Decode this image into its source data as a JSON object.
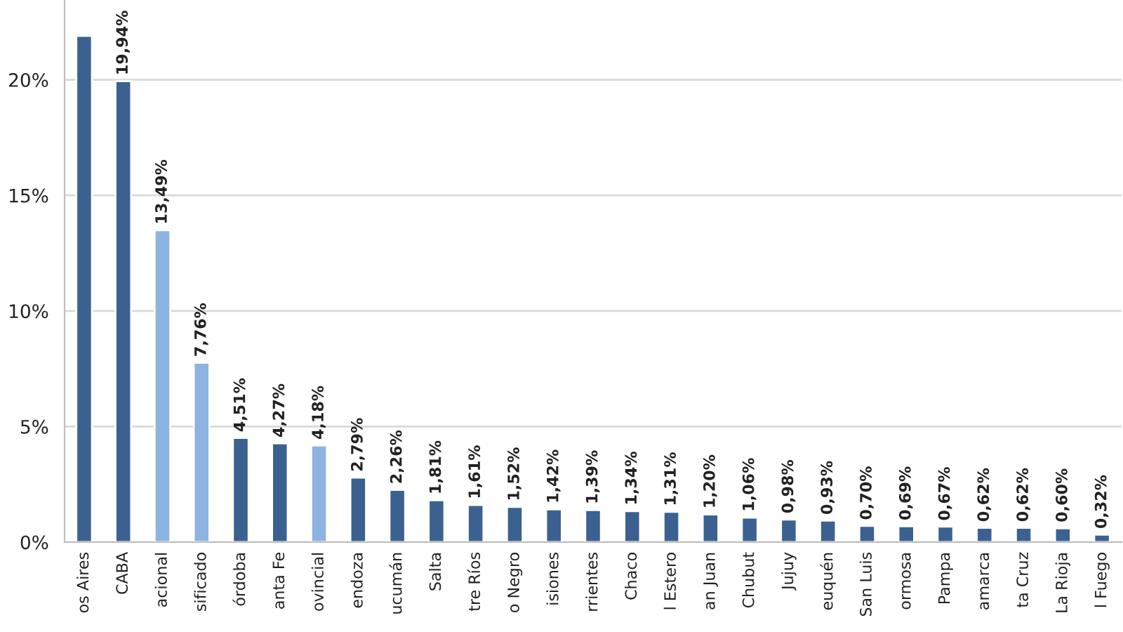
{
  "chart_data": {
    "type": "bar",
    "categories": [
      "os Aires",
      "CABA",
      "acional",
      "sificado",
      "órdoba",
      "anta Fe",
      "ovincial",
      "endoza",
      "ucumán",
      "Salta",
      "tre Ríos",
      "o Negro",
      "isiones",
      "rrientes",
      "Chaco",
      "l Estero",
      "an Juan",
      "Chubut",
      "Jujuy",
      "euquén",
      "San Luis",
      "ormosa",
      "Pampa",
      "amarca",
      "ta Cruz",
      "La Rioja",
      "l Fuego"
    ],
    "values": [
      21.9,
      19.94,
      13.49,
      7.76,
      4.51,
      4.27,
      4.18,
      2.79,
      2.26,
      1.81,
      1.61,
      1.52,
      1.42,
      1.39,
      1.34,
      1.31,
      1.2,
      1.06,
      0.98,
      0.93,
      0.7,
      0.69,
      0.67,
      0.62,
      0.62,
      0.6,
      0.32
    ],
    "value_labels": [
      null,
      "19,94%",
      "13,49%",
      "7,76%",
      "4,51%",
      "4,27%",
      "4,18%",
      "2,79%",
      "2,26%",
      "1,81%",
      "1,61%",
      "1,52%",
      "1,42%",
      "1,39%",
      "1,34%",
      "1,31%",
      "1,20%",
      "1,06%",
      "0,98%",
      "0,93%",
      "0,70%",
      "0,69%",
      "0,67%",
      "0,62%",
      "0,62%",
      "0,60%",
      "0,32%"
    ],
    "colors": [
      "#3b6190",
      "#3b6190",
      "#8db3e2",
      "#8db3e2",
      "#3b6190",
      "#3b6190",
      "#8db3e2",
      "#3b6190",
      "#3b6190",
      "#3b6190",
      "#3b6190",
      "#3b6190",
      "#3b6190",
      "#3b6190",
      "#3b6190",
      "#3b6190",
      "#3b6190",
      "#3b6190",
      "#3b6190",
      "#3b6190",
      "#3b6190",
      "#3b6190",
      "#3b6190",
      "#3b6190",
      "#3b6190",
      "#3b6190",
      "#3b6190"
    ],
    "ylim": [
      0,
      23.45
    ],
    "yticks": [
      {
        "value": 0,
        "label": "0%"
      },
      {
        "value": 5,
        "label": "5%"
      },
      {
        "value": 10,
        "label": "10%"
      },
      {
        "value": 15,
        "label": "15%"
      },
      {
        "value": 20,
        "label": "20%"
      }
    ],
    "grid": "y",
    "legend": false
  }
}
